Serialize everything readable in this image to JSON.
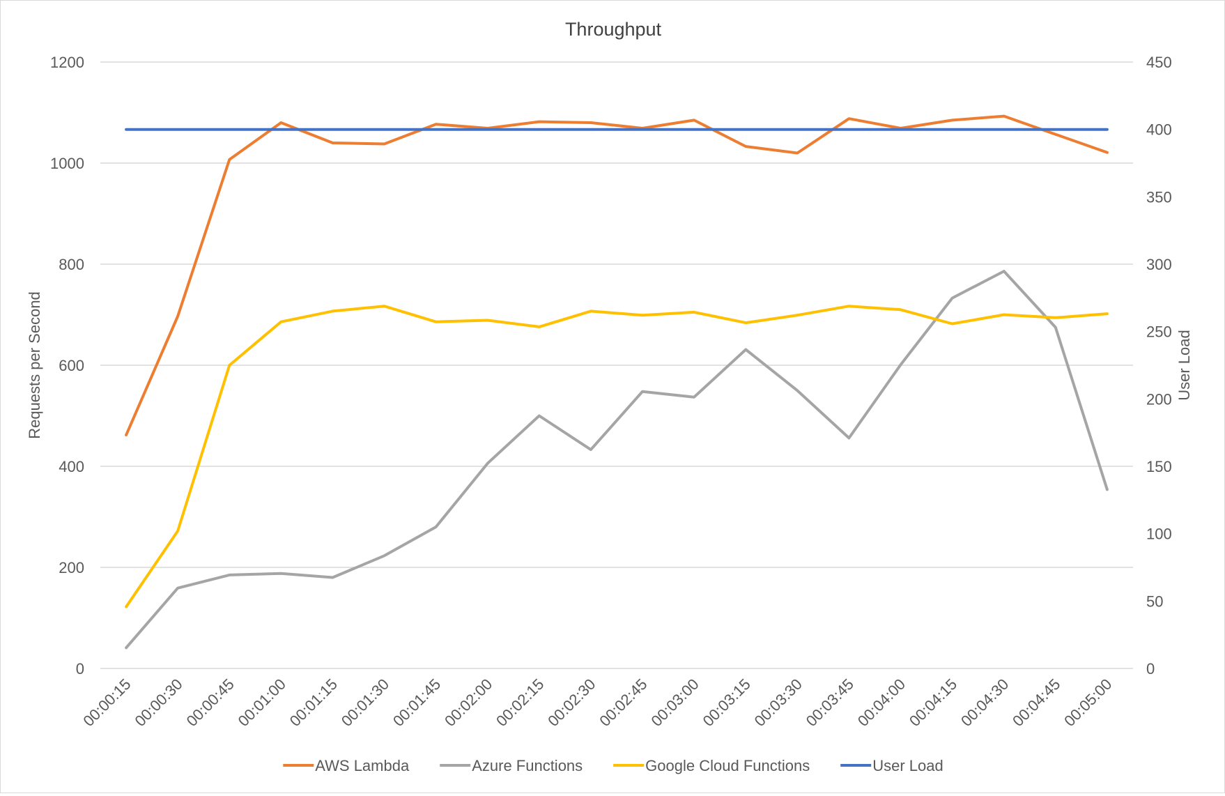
{
  "chart_data": {
    "type": "line",
    "title": "Throughput",
    "xlabel": "",
    "ylabel": "Requests per Second",
    "y2label": "User Load",
    "ylim": [
      0,
      1200
    ],
    "y2lim": [
      0,
      450
    ],
    "yticks": [
      "0",
      "200",
      "400",
      "600",
      "800",
      "1000",
      "1200"
    ],
    "y2ticks": [
      "0",
      "50",
      "100",
      "150",
      "200",
      "250",
      "300",
      "350",
      "400",
      "450"
    ],
    "grid": true,
    "legend_position": "bottom",
    "categories": [
      "00:00:15",
      "00:00:30",
      "00:00:45",
      "00:01:00",
      "00:01:15",
      "00:01:30",
      "00:01:45",
      "00:02:00",
      "00:02:15",
      "00:02:30",
      "00:02:45",
      "00:03:00",
      "00:03:15",
      "00:03:30",
      "00:03:45",
      "00:04:00",
      "00:04:15",
      "00:04:30",
      "00:04:45",
      "00:05:00"
    ],
    "series": [
      {
        "name": "AWS Lambda",
        "color": "#ED7D31",
        "axis": "left",
        "values": [
          462,
          697,
          1007,
          1080,
          1040,
          1038,
          1077,
          1069,
          1082,
          1080,
          1069,
          1085,
          1033,
          1020,
          1088,
          1069,
          1085,
          1093,
          1057,
          1021
        ]
      },
      {
        "name": "Azure Functions",
        "color": "#A5A5A5",
        "axis": "left",
        "values": [
          41,
          159,
          185,
          188,
          180,
          223,
          280,
          406,
          500,
          433,
          548,
          537,
          631,
          550,
          456,
          601,
          733,
          786,
          675,
          354
        ]
      },
      {
        "name": "Google Cloud Functions",
        "color": "#FFC000",
        "axis": "left",
        "values": [
          122,
          272,
          600,
          686,
          707,
          717,
          686,
          689,
          676,
          707,
          699,
          705,
          684,
          699,
          717,
          710,
          682,
          700,
          694,
          702
        ]
      },
      {
        "name": "User Load",
        "color": "#4472C4",
        "axis": "right",
        "values": [
          400,
          400,
          400,
          400,
          400,
          400,
          400,
          400,
          400,
          400,
          400,
          400,
          400,
          400,
          400,
          400,
          400,
          400,
          400,
          400
        ]
      }
    ]
  }
}
